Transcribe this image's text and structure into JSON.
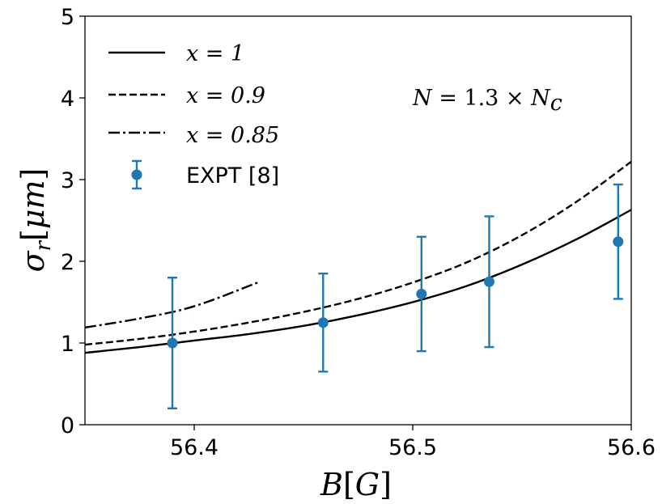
{
  "chart_data": {
    "type": "line",
    "xlabel": "B[G]",
    "ylabel": "σ_r[μm]",
    "xlim": [
      56.35,
      56.6
    ],
    "ylim": [
      0,
      5
    ],
    "xticks": [
      56.4,
      56.5,
      56.6
    ],
    "xtick_labels": [
      "56.4",
      "56.5",
      "56.6"
    ],
    "yticks": [
      0,
      1,
      2,
      3,
      4,
      5
    ],
    "ytick_labels": [
      "0",
      "1",
      "2",
      "3",
      "4",
      "5"
    ],
    "grid": false,
    "legend_position": "top-left",
    "annotation": "N = 1.3 × N_c",
    "series": [
      {
        "name": "x = 1",
        "style": "solid",
        "color": "#000000",
        "x": [
          56.35,
          56.375,
          56.4,
          56.425,
          56.45,
          56.475,
          56.5,
          56.525,
          56.55,
          56.575,
          56.6
        ],
        "y": [
          0.88,
          0.95,
          1.03,
          1.11,
          1.21,
          1.34,
          1.5,
          1.7,
          1.96,
          2.27,
          2.63
        ]
      },
      {
        "name": "x = 0.9",
        "style": "dashed",
        "color": "#000000",
        "x": [
          56.35,
          56.375,
          56.4,
          56.425,
          56.45,
          56.475,
          56.5,
          56.525,
          56.55,
          56.575,
          56.6
        ],
        "y": [
          0.98,
          1.05,
          1.14,
          1.25,
          1.38,
          1.54,
          1.74,
          1.99,
          2.32,
          2.73,
          3.22
        ]
      },
      {
        "name": "x = 0.85",
        "style": "dashdot",
        "color": "#000000",
        "x": [
          56.35,
          56.375,
          56.4,
          56.43
        ],
        "y": [
          1.19,
          1.3,
          1.45,
          1.75
        ]
      },
      {
        "name": "EXPT [8]",
        "style": "errorbar",
        "color": "#1f77b4",
        "x": [
          56.39,
          56.459,
          56.504,
          56.535,
          56.594
        ],
        "y": [
          1.0,
          1.25,
          1.6,
          1.75,
          2.24
        ],
        "err": [
          0.8,
          0.6,
          0.7,
          0.8,
          0.7
        ]
      }
    ]
  },
  "legend": {
    "x1": "x = 1",
    "x09": "x = 0.9",
    "x085": "x = 0.85",
    "expt": "EXPT [8]"
  },
  "annotation": {
    "N": "N",
    "eq": " = 1.3 × ",
    "Nc": "N",
    "c": "c"
  },
  "axis": {
    "x_main": "B",
    "x_b1": "[",
    "x_g": "G",
    "x_b2": "]",
    "y_sigma": "σ",
    "y_sub": "r",
    "y_b1": "[",
    "y_mu": "μm",
    "y_b2": "]"
  }
}
